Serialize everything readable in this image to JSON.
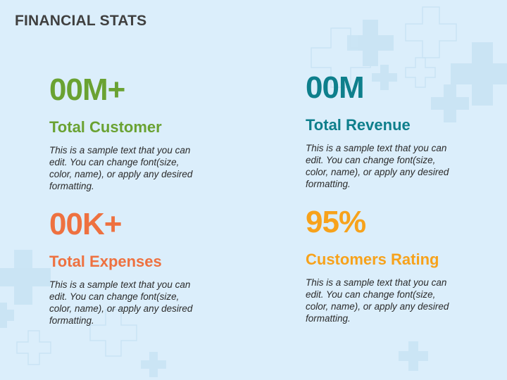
{
  "title": "FINANCIAL STATS",
  "colors": {
    "background": "#dbeefb",
    "green": "#6aa232",
    "teal": "#0e7f8c",
    "orange_red": "#ee7140",
    "orange": "#f7a21b"
  },
  "stats": [
    {
      "value": "00M+",
      "label": "Total Customer",
      "description": "This is a sample text that you can edit. You can change font(size, color, name), or apply any desired formatting.",
      "color": "#6aa232"
    },
    {
      "value": "00M",
      "label": "Total Revenue",
      "description": "This is a sample text that you can edit. You can change font(size, color, name), or apply any desired formatting.",
      "color": "#0e7f8c"
    },
    {
      "value": "00K+",
      "label": "Total Expenses",
      "description": "This is a sample text that you can edit. You can change font(size, color, name), or apply any desired formatting.",
      "color": "#ee7140"
    },
    {
      "value": "95%",
      "label": "Customers Rating",
      "description": "This is a sample text that you can edit. You can change font(size, color, name), or apply any desired formatting.",
      "color": "#f7a21b"
    }
  ]
}
